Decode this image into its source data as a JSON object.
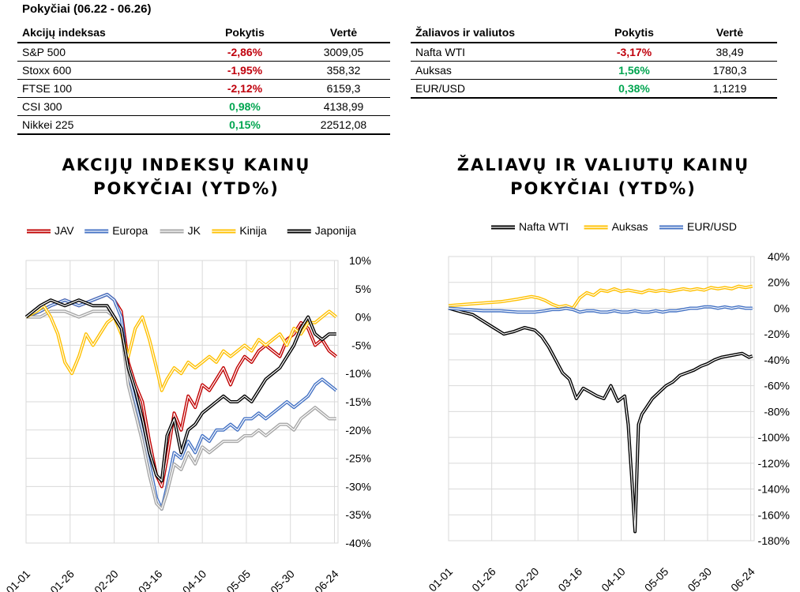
{
  "heading": "Pokyčiai (06.22 - 06.26)",
  "table_indices": {
    "headers": [
      "Akcijų indeksas",
      "Pokytis",
      "Vertė"
    ],
    "rows": [
      {
        "name": "S&P 500",
        "change": "-2,86%",
        "value": "3009,05",
        "dir": "neg"
      },
      {
        "name": "Stoxx 600",
        "change": "-1,95%",
        "value": "358,32",
        "dir": "neg"
      },
      {
        "name": "FTSE 100",
        "change": "-2,12%",
        "value": "6159,3",
        "dir": "neg"
      },
      {
        "name": "CSI 300",
        "change": "0,98%",
        "value": "4138,99",
        "dir": "pos"
      },
      {
        "name": "Nikkei 225",
        "change": "0,15%",
        "value": "22512,08",
        "dir": "pos"
      }
    ]
  },
  "table_commodities": {
    "headers": [
      "Žaliavos ir valiutos",
      "Pokytis",
      "Vertė"
    ],
    "rows": [
      {
        "name": "Nafta WTI",
        "change": "-3,17%",
        "value": "38,49",
        "dir": "neg"
      },
      {
        "name": "Auksas",
        "change": "1,56%",
        "value": "1780,3",
        "dir": "pos"
      },
      {
        "name": "EUR/USD",
        "change": "0,38%",
        "value": "1,1219",
        "dir": "pos"
      }
    ]
  },
  "colors": {
    "negative": "#c0000c",
    "positive": "#00a550"
  },
  "chart_data": [
    {
      "type": "line",
      "title_line1": "AKCIJŲ INDEKSŲ KAINŲ",
      "title_line2": "POKYČIAI (YTD%)",
      "y_axis_position": "right",
      "legend_position": "top",
      "ylim": [
        -40,
        10
      ],
      "yticks": [
        10,
        5,
        0,
        -5,
        -10,
        -15,
        -20,
        -25,
        -30,
        -35,
        -40
      ],
      "ytick_labels": [
        "10%",
        "5%",
        "0%",
        "-5%",
        "-10%",
        "-15%",
        "-20%",
        "-25%",
        "-30%",
        "-35%",
        "-40%"
      ],
      "xticks": [
        "01-01",
        "01-26",
        "02-20",
        "03-16",
        "04-10",
        "05-05",
        "05-30",
        "06-24"
      ],
      "x_days": [
        0,
        25,
        50,
        75,
        100,
        125,
        150,
        175
      ],
      "xlim": [
        0,
        177
      ],
      "series": [
        {
          "name": "JAV",
          "color": "#c00000",
          "x": [
            0,
            8,
            14,
            22,
            30,
            38,
            46,
            50,
            54,
            58,
            62,
            66,
            70,
            74,
            77,
            80,
            84,
            88,
            92,
            96,
            100,
            104,
            108,
            112,
            116,
            120,
            124,
            128,
            132,
            136,
            140,
            144,
            148,
            152,
            156,
            160,
            164,
            168,
            172,
            176
          ],
          "y": [
            0,
            1,
            2,
            3,
            2,
            3,
            4,
            3,
            1,
            -8,
            -12,
            -15,
            -22,
            -28,
            -30,
            -25,
            -17,
            -20,
            -14,
            -16,
            -12,
            -13,
            -11,
            -9,
            -12,
            -9,
            -7,
            -8,
            -6,
            -5,
            -6,
            -7,
            -4,
            -3,
            -1,
            -2,
            -5,
            -4,
            -6,
            -7
          ]
        },
        {
          "name": "Europa",
          "color": "#4472c4",
          "x": [
            0,
            8,
            14,
            22,
            30,
            38,
            46,
            50,
            54,
            58,
            62,
            66,
            70,
            74,
            77,
            80,
            84,
            88,
            92,
            96,
            100,
            104,
            108,
            112,
            116,
            120,
            124,
            128,
            132,
            136,
            140,
            144,
            148,
            152,
            156,
            160,
            164,
            168,
            172,
            176
          ],
          "y": [
            0,
            1,
            2,
            3,
            2,
            3,
            4,
            3,
            0,
            -10,
            -15,
            -20,
            -26,
            -32,
            -34,
            -30,
            -24,
            -25,
            -22,
            -24,
            -21,
            -22,
            -20,
            -20,
            -19,
            -20,
            -18,
            -18,
            -17,
            -18,
            -17,
            -16,
            -15,
            -16,
            -15,
            -14,
            -12,
            -11,
            -12,
            -13
          ]
        },
        {
          "name": "JK",
          "color": "#a6a6a6",
          "x": [
            0,
            8,
            14,
            22,
            30,
            38,
            46,
            50,
            54,
            58,
            62,
            66,
            70,
            74,
            77,
            80,
            84,
            88,
            92,
            96,
            100,
            104,
            108,
            112,
            116,
            120,
            124,
            128,
            132,
            136,
            140,
            144,
            148,
            152,
            156,
            160,
            164,
            168,
            172,
            176
          ],
          "y": [
            0,
            0,
            1,
            1,
            0,
            1,
            1,
            0,
            -2,
            -12,
            -17,
            -22,
            -28,
            -33,
            -34,
            -31,
            -26,
            -27,
            -24,
            -26,
            -23,
            -24,
            -23,
            -22,
            -22,
            -22,
            -21,
            -21,
            -20,
            -21,
            -20,
            -19,
            -19,
            -20,
            -18,
            -17,
            -16,
            -17,
            -18,
            -18
          ]
        },
        {
          "name": "Kinija",
          "color": "#ffc000",
          "x": [
            0,
            6,
            10,
            14,
            18,
            22,
            26,
            30,
            34,
            38,
            42,
            46,
            50,
            54,
            58,
            62,
            66,
            70,
            74,
            77,
            80,
            84,
            88,
            92,
            96,
            100,
            104,
            108,
            112,
            116,
            120,
            124,
            128,
            132,
            136,
            140,
            144,
            148,
            152,
            156,
            160,
            164,
            168,
            172,
            176
          ],
          "y": [
            0,
            1,
            2,
            0,
            -3,
            -8,
            -10,
            -7,
            -3,
            -5,
            -3,
            -1,
            0,
            -3,
            -7,
            -2,
            0,
            -4,
            -9,
            -13,
            -11,
            -9,
            -10,
            -8,
            -9,
            -8,
            -7,
            -8,
            -6,
            -7,
            -6,
            -5,
            -6,
            -4,
            -5,
            -4,
            -3,
            -5,
            -2,
            -3,
            -1,
            -1,
            0,
            1,
            0
          ]
        },
        {
          "name": "Japonija",
          "color": "#000000",
          "x": [
            0,
            8,
            14,
            22,
            30,
            38,
            46,
            50,
            54,
            58,
            62,
            66,
            70,
            74,
            77,
            80,
            84,
            88,
            92,
            96,
            100,
            104,
            108,
            112,
            116,
            120,
            124,
            128,
            132,
            136,
            140,
            144,
            148,
            152,
            156,
            160,
            164,
            168,
            172,
            176
          ],
          "y": [
            0,
            2,
            3,
            2,
            3,
            2,
            2,
            0,
            -2,
            -9,
            -13,
            -18,
            -24,
            -28,
            -29,
            -21,
            -18,
            -24,
            -20,
            -19,
            -17,
            -16,
            -15,
            -14,
            -15,
            -15,
            -14,
            -15,
            -13,
            -11,
            -10,
            -9,
            -7,
            -5,
            -2,
            0,
            -3,
            -4,
            -3,
            -3
          ]
        }
      ]
    },
    {
      "type": "line",
      "title_line1": "ŽALIAVŲ IR VALIUTŲ KAINŲ",
      "title_line2": "POKYČIAI (YTD%)",
      "y_axis_position": "right",
      "legend_position": "top",
      "ylim": [
        -180,
        40
      ],
      "yticks": [
        40,
        20,
        0,
        -20,
        -40,
        -60,
        -80,
        -100,
        -120,
        -140,
        -160,
        -180
      ],
      "ytick_labels": [
        "40%",
        "20%",
        "0%",
        "-20%",
        "-40%",
        "-60%",
        "-80%",
        "-100%",
        "-120%",
        "-140%",
        "-160%",
        "-180%"
      ],
      "xticks": [
        "01-01",
        "01-26",
        "02-20",
        "03-16",
        "04-10",
        "05-05",
        "05-30",
        "06-24"
      ],
      "x_days": [
        0,
        25,
        50,
        75,
        100,
        125,
        150,
        175
      ],
      "xlim": [
        0,
        177
      ],
      "series": [
        {
          "name": "Nafta WTI",
          "color": "#000000",
          "x": [
            0,
            8,
            14,
            20,
            26,
            32,
            38,
            44,
            50,
            54,
            58,
            62,
            66,
            70,
            74,
            78,
            82,
            86,
            90,
            94,
            98,
            102,
            104,
            106,
            108,
            110,
            112,
            114,
            118,
            122,
            126,
            130,
            134,
            138,
            142,
            146,
            150,
            154,
            158,
            162,
            166,
            170,
            174,
            176
          ],
          "y": [
            0,
            -3,
            -5,
            -10,
            -15,
            -20,
            -18,
            -15,
            -17,
            -22,
            -30,
            -40,
            -50,
            -55,
            -70,
            -62,
            -65,
            -68,
            -70,
            -60,
            -72,
            -68,
            -90,
            -130,
            -173,
            -90,
            -82,
            -78,
            -70,
            -65,
            -60,
            -57,
            -52,
            -50,
            -48,
            -45,
            -43,
            -40,
            -38,
            -37,
            -36,
            -35,
            -38,
            -37
          ]
        },
        {
          "name": "Auksas",
          "color": "#ffc000",
          "x": [
            0,
            10,
            20,
            30,
            40,
            48,
            52,
            56,
            60,
            64,
            68,
            72,
            76,
            80,
            84,
            88,
            92,
            96,
            100,
            104,
            108,
            112,
            116,
            120,
            124,
            128,
            132,
            136,
            140,
            144,
            148,
            152,
            156,
            160,
            164,
            168,
            172,
            176
          ],
          "y": [
            2,
            3,
            4,
            5,
            7,
            9,
            8,
            6,
            3,
            1,
            2,
            0,
            8,
            12,
            10,
            14,
            13,
            15,
            13,
            14,
            13,
            12,
            14,
            13,
            14,
            13,
            14,
            15,
            14,
            15,
            14,
            16,
            15,
            16,
            15,
            17,
            16,
            17
          ]
        },
        {
          "name": "EUR/USD",
          "color": "#4472c4",
          "x": [
            0,
            10,
            20,
            30,
            40,
            50,
            56,
            60,
            64,
            68,
            72,
            76,
            80,
            84,
            88,
            92,
            96,
            100,
            104,
            108,
            112,
            116,
            120,
            124,
            128,
            132,
            136,
            140,
            144,
            148,
            152,
            156,
            160,
            164,
            168,
            172,
            176
          ],
          "y": [
            0,
            -1,
            -2,
            -2,
            -3,
            -3,
            -2,
            -1,
            -1,
            0,
            -1,
            -3,
            -2,
            -2,
            -3,
            -3,
            -2,
            -3,
            -3,
            -2,
            -3,
            -3,
            -2,
            -3,
            -2,
            -2,
            -1,
            0,
            0,
            1,
            1,
            0,
            1,
            0,
            1,
            0,
            0
          ]
        }
      ]
    }
  ]
}
